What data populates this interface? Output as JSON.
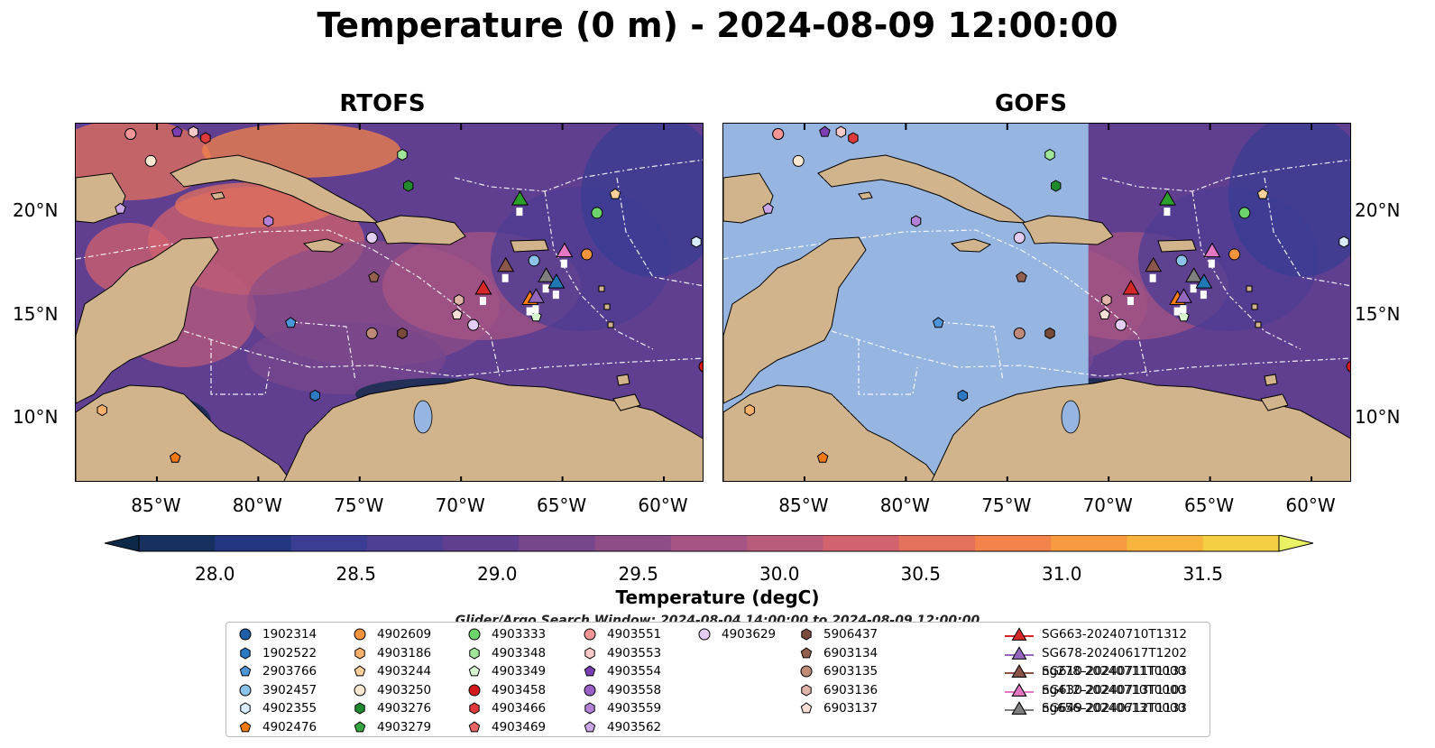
{
  "title": "Temperature (0 m) - 2024-08-09 12:00:00",
  "panels": [
    {
      "title": "RTOFS"
    },
    {
      "title": "GOFS"
    }
  ],
  "lat_ticks": [
    "20°N",
    "15°N",
    "10°N"
  ],
  "lon_ticks": [
    "85°W",
    "80°W",
    "75°W",
    "70°W",
    "65°W",
    "60°W"
  ],
  "colorbar": {
    "label": "Temperature (degC)",
    "ticks": [
      "28.0",
      "28.5",
      "29.0",
      "29.5",
      "30.0",
      "30.5",
      "31.0",
      "31.5"
    ],
    "colors": [
      "#0c2a47",
      "#17305f",
      "#243682",
      "#3a3d93",
      "#4e3e94",
      "#603f91",
      "#77478c",
      "#8d4e87",
      "#a55483",
      "#b95b7a",
      "#d1626e",
      "#e3715b",
      "#f2834a",
      "#f89a40",
      "#f8b43c",
      "#f4cf45",
      "#eaf162"
    ]
  },
  "search_window": "Glider/Argo Search Window: 2024-08-04 14:00:00 to 2024-08-09 12:00:00",
  "legend": [
    {
      "label": "1902314",
      "marker": "circle",
      "color": "#1f5fa8"
    },
    {
      "label": "1902522",
      "marker": "hexagon",
      "color": "#2e7bc4"
    },
    {
      "label": "2903766",
      "marker": "pentagon",
      "color": "#4c95d6"
    },
    {
      "label": "3902457",
      "marker": "circle",
      "color": "#8cc3ea"
    },
    {
      "label": "4902355",
      "marker": "hexagon",
      "color": "#d9ecfb"
    },
    {
      "label": "4902476",
      "marker": "pentagon",
      "color": "#f07a10"
    },
    {
      "label": "4902609",
      "marker": "circle",
      "color": "#f5943c"
    },
    {
      "label": "4903186",
      "marker": "hexagon",
      "color": "#fbb06c"
    },
    {
      "label": "4903244",
      "marker": "pentagon",
      "color": "#fdcf9b"
    },
    {
      "label": "4903250",
      "marker": "circle",
      "color": "#fde9d2"
    },
    {
      "label": "4903276",
      "marker": "hexagon",
      "color": "#1f8a2e"
    },
    {
      "label": "4903279",
      "marker": "pentagon",
      "color": "#36a842"
    },
    {
      "label": "4903333",
      "marker": "circle",
      "color": "#6dd46c"
    },
    {
      "label": "4903348",
      "marker": "hexagon",
      "color": "#9fe59a"
    },
    {
      "label": "4903349",
      "marker": "pentagon",
      "color": "#d7f7cf"
    },
    {
      "label": "4903458",
      "marker": "circle",
      "color": "#d4191c"
    },
    {
      "label": "4903466",
      "marker": "hexagon",
      "color": "#e0393b"
    },
    {
      "label": "4903469",
      "marker": "pentagon",
      "color": "#eb6566"
    },
    {
      "label": "4903551",
      "marker": "circle",
      "color": "#f59596"
    },
    {
      "label": "4903553",
      "marker": "hexagon",
      "color": "#fcc9c9"
    },
    {
      "label": "4903554",
      "marker": "pentagon",
      "color": "#7b3fb3"
    },
    {
      "label": "4903558",
      "marker": "circle",
      "color": "#9a5fc6"
    },
    {
      "label": "4903559",
      "marker": "hexagon",
      "color": "#b382d8"
    },
    {
      "label": "4903562",
      "marker": "pentagon",
      "color": "#cba6e6"
    },
    {
      "label": "4903629",
      "marker": "circle",
      "color": "#e4cdf5"
    },
    {
      "label": "5906437",
      "marker": "hexagon",
      "color": "#7a4a3a"
    },
    {
      "label": "6903134",
      "marker": "pentagon",
      "color": "#94604e"
    },
    {
      "label": "6903135",
      "marker": "circle",
      "color": "#c08a78"
    },
    {
      "label": "6903136",
      "marker": "hexagon",
      "color": "#e0b4a8"
    },
    {
      "label": "6903137",
      "marker": "pentagon",
      "color": "#fbe0d8"
    },
    {
      "label": "SG610-20240711T1133",
      "marker": "triangle",
      "color": "#1f77b4"
    },
    {
      "label": "SG630-20240713T1103",
      "marker": "triangle",
      "color": "#ff7f0e"
    },
    {
      "label": "SG649-20240712T1133",
      "marker": "triangle",
      "color": "#2ca02c"
    },
    {
      "label": "SG663-20240710T1312",
      "marker": "triangle",
      "color": "#d62728"
    },
    {
      "label": "SG678-20240617T1202",
      "marker": "triangle",
      "color": "#9467bd"
    },
    {
      "label": "ng278-20240711T0000",
      "marker": "triangle",
      "color": "#8c564b"
    },
    {
      "label": "ng412-20240710T0000",
      "marker": "triangle",
      "color": "#e377c2"
    },
    {
      "label": "ng656-20240613T0000",
      "marker": "triangle",
      "color": "#7f7f7f"
    }
  ],
  "chart_data": {
    "type": "heatmap",
    "variable": "Temperature (degC)",
    "depth_m": 0,
    "time": "2024-08-09 12:00:00",
    "lon_range": [
      -89,
      -58
    ],
    "lat_range": [
      7,
      24.3
    ],
    "clim": [
      28.0,
      31.5
    ],
    "extend": "both",
    "panels": [
      "RTOFS",
      "GOFS"
    ],
    "gofs_data_coverage_lon_min": -71,
    "observations": [
      {
        "id": "1902314",
        "type": "argo",
        "lon": -86.3,
        "lat": 23.8
      },
      {
        "id": "4903250",
        "type": "argo",
        "lon": -85.3,
        "lat": 22.5
      },
      {
        "id": "4903562",
        "type": "argo",
        "lon": -86.8,
        "lat": 20.2
      },
      {
        "id": "4903559",
        "type": "argo",
        "lon": -79.5,
        "lat": 19.6
      },
      {
        "id": "4903466",
        "type": "argo",
        "lon": -82.6,
        "lat": 23.6
      },
      {
        "id": "4903553",
        "type": "argo",
        "lon": -83.2,
        "lat": 23.9
      },
      {
        "id": "4903554",
        "type": "argo",
        "lon": -84.0,
        "lat": 23.9
      },
      {
        "id": "4903551",
        "type": "argo",
        "lon": -86.3,
        "lat": 23.8
      },
      {
        "id": "4903348",
        "type": "argo",
        "lon": -72.9,
        "lat": 22.8
      },
      {
        "id": "4903276",
        "type": "argo",
        "lon": -72.6,
        "lat": 21.3
      },
      {
        "id": "4903244",
        "type": "argo",
        "lon": -62.4,
        "lat": 20.9
      },
      {
        "id": "4903333",
        "type": "argo",
        "lon": -63.3,
        "lat": 20.0
      },
      {
        "id": "4903629",
        "type": "argo",
        "lon": -74.4,
        "lat": 18.8
      },
      {
        "id": "6903134",
        "type": "argo",
        "lon": -74.3,
        "lat": 16.9
      },
      {
        "id": "3902457",
        "type": "argo",
        "lon": -66.4,
        "lat": 17.7
      },
      {
        "id": "4902609",
        "type": "argo",
        "lon": -63.8,
        "lat": 18.0
      },
      {
        "id": "4902355",
        "type": "argo",
        "lon": -58.4,
        "lat": 18.6
      },
      {
        "id": "6903136",
        "type": "argo",
        "lon": -70.1,
        "lat": 15.8
      },
      {
        "id": "6903137",
        "type": "argo",
        "lon": -70.2,
        "lat": 15.1
      },
      {
        "id": "4903349",
        "type": "argo",
        "lon": -66.3,
        "lat": 15.0
      },
      {
        "id": "4903629b",
        "type": "argo",
        "lon": -69.4,
        "lat": 14.6
      },
      {
        "id": "6903135",
        "type": "argo",
        "lon": -74.4,
        "lat": 14.2
      },
      {
        "id": "5906437",
        "type": "argo",
        "lon": -72.9,
        "lat": 14.2
      },
      {
        "id": "2903766",
        "type": "argo",
        "lon": -78.4,
        "lat": 14.7
      },
      {
        "id": "1902522",
        "type": "argo",
        "lon": -77.2,
        "lat": 11.2
      },
      {
        "id": "4903458",
        "type": "argo",
        "lon": -58.0,
        "lat": 12.6
      },
      {
        "id": "4903186",
        "type": "argo",
        "lon": -87.7,
        "lat": 10.5
      },
      {
        "id": "4902476",
        "type": "argo",
        "lon": -84.1,
        "lat": 8.2
      },
      {
        "id": "SG649-20240712T1133",
        "type": "glider",
        "lon": -67.1,
        "lat": 20.6
      },
      {
        "id": "ng412-20240710T0000",
        "type": "glider",
        "lon": -64.9,
        "lat": 18.1
      },
      {
        "id": "ng278-20240711T0000",
        "type": "glider",
        "lon": -67.8,
        "lat": 17.4
      },
      {
        "id": "ng656-20240613T0000",
        "type": "glider",
        "lon": -65.8,
        "lat": 16.9
      },
      {
        "id": "SG610-20240711T1133",
        "type": "glider",
        "lon": -65.3,
        "lat": 16.6
      },
      {
        "id": "SG663-20240710T1312",
        "type": "glider",
        "lon": -68.9,
        "lat": 16.3
      },
      {
        "id": "SG630-20240713T1103",
        "type": "glider",
        "lon": -66.6,
        "lat": 15.8
      },
      {
        "id": "SG678-20240617T1202",
        "type": "glider",
        "lon": -66.3,
        "lat": 15.9
      }
    ]
  }
}
